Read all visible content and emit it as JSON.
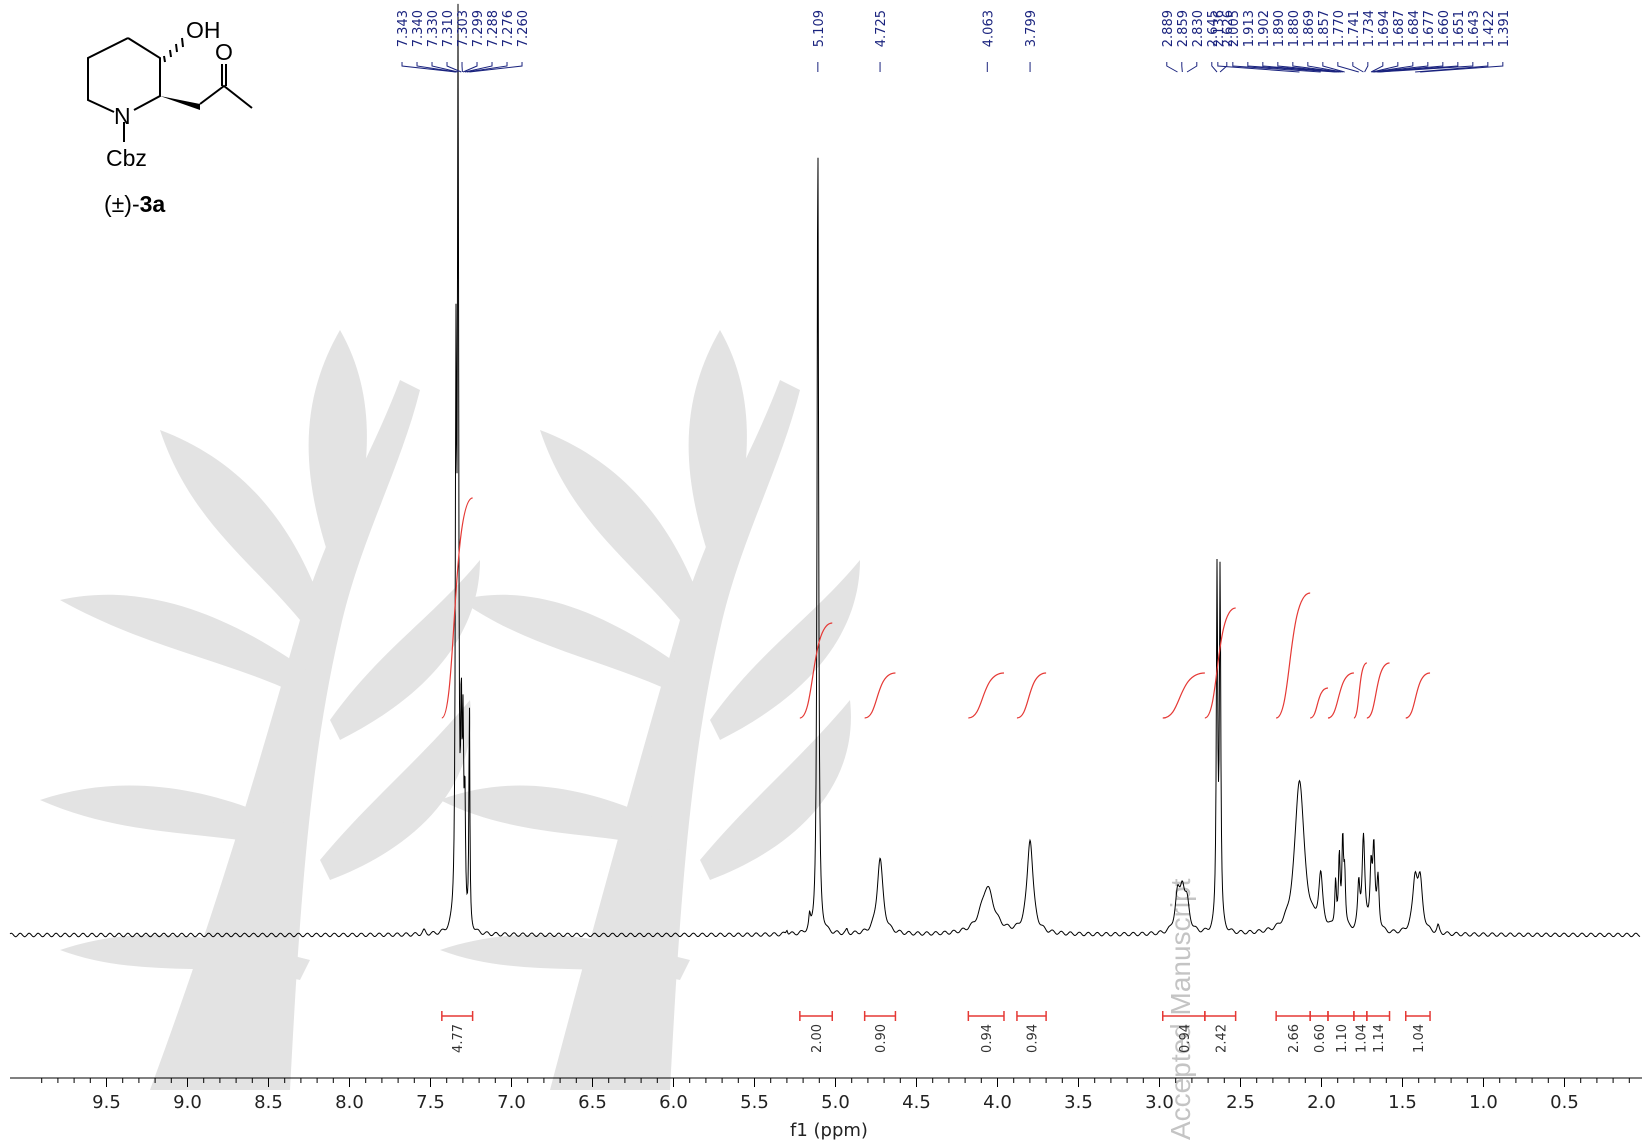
{
  "chart_data": {
    "type": "line",
    "xlabel": "f1 (ppm)",
    "xlim": [
      10.0,
      0.0
    ],
    "x_reversed": true,
    "x_ticks": [
      9.5,
      9.0,
      8.5,
      8.0,
      7.5,
      7.0,
      6.5,
      6.0,
      5.5,
      5.0,
      4.5,
      4.0,
      3.5,
      3.0,
      2.5,
      2.0,
      1.5,
      1.0,
      0.5
    ],
    "x_tick_labels": [
      "9.5",
      "9.0",
      "8.5",
      "8.0",
      "7.5",
      "7.0",
      "6.5",
      "6.0",
      "5.5",
      "5.0",
      "4.5",
      "4.0",
      "3.5",
      "3.0",
      "2.5",
      "2.0",
      "1.5",
      "1.0",
      "0.5"
    ],
    "peak_groups": [
      {
        "labels": [
          "7.343",
          "7.340",
          "7.330",
          "7.310",
          "7.303",
          "7.299",
          "7.288",
          "7.276",
          "7.260"
        ],
        "ppm": [
          7.343,
          7.34,
          7.33,
          7.31,
          7.303,
          7.299,
          7.288,
          7.276,
          7.26
        ]
      },
      {
        "labels": [
          "5.109"
        ],
        "ppm": [
          5.109
        ]
      },
      {
        "labels": [
          "4.725"
        ],
        "ppm": [
          4.725
        ]
      },
      {
        "labels": [
          "4.063"
        ],
        "ppm": [
          4.063
        ]
      },
      {
        "labels": [
          "3.799"
        ],
        "ppm": [
          3.799
        ]
      },
      {
        "labels": [
          "2.889",
          "2.859",
          "2.830",
          "2.645",
          "2.626"
        ],
        "ppm": [
          2.889,
          2.859,
          2.83,
          2.645,
          2.626
        ]
      },
      {
        "labels": [
          "2.136",
          "2.005",
          "1.913",
          "1.902",
          "1.890",
          "1.880",
          "1.869",
          "1.857",
          "1.770",
          "1.741",
          "1.734",
          "1.694",
          "1.687",
          "1.684",
          "1.677",
          "1.660",
          "1.651",
          "1.643",
          "1.422",
          "1.391"
        ],
        "ppm": [
          2.136,
          2.005,
          1.913,
          1.902,
          1.89,
          1.88,
          1.869,
          1.857,
          1.77,
          1.741,
          1.734,
          1.694,
          1.687,
          1.684,
          1.677,
          1.66,
          1.651,
          1.643,
          1.422,
          1.391
        ]
      }
    ],
    "integrals": [
      {
        "from": 7.43,
        "to": 7.24,
        "value": "4.77"
      },
      {
        "from": 5.22,
        "to": 5.02,
        "value": "2.00"
      },
      {
        "from": 4.82,
        "to": 4.63,
        "value": "0.90"
      },
      {
        "from": 4.18,
        "to": 3.96,
        "value": "0.94"
      },
      {
        "from": 3.88,
        "to": 3.7,
        "value": "0.94"
      },
      {
        "from": 2.98,
        "to": 2.72,
        "value": "0.94"
      },
      {
        "from": 2.72,
        "to": 2.53,
        "value": "2.42"
      },
      {
        "from": 2.28,
        "to": 2.07,
        "value": "2.66"
      },
      {
        "from": 2.07,
        "to": 1.96,
        "value": "0.60"
      },
      {
        "from": 1.96,
        "to": 1.8,
        "value": "1.10"
      },
      {
        "from": 1.8,
        "to": 1.72,
        "value": "1.04"
      },
      {
        "from": 1.72,
        "to": 1.58,
        "value": "1.14"
      },
      {
        "from": 1.48,
        "to": 1.33,
        "value": "1.04"
      }
    ],
    "spectrum_peaks": [
      {
        "ppm": 7.343,
        "h": 0.62,
        "w": 0.0045
      },
      {
        "ppm": 7.33,
        "h": 1.0,
        "w": 0.0045
      },
      {
        "ppm": 7.31,
        "h": 0.22,
        "w": 0.0045
      },
      {
        "ppm": 7.299,
        "h": 0.2,
        "w": 0.0045
      },
      {
        "ppm": 7.288,
        "h": 0.14,
        "w": 0.0045
      },
      {
        "ppm": 7.26,
        "h": 0.26,
        "w": 0.0035
      },
      {
        "ppm": 5.109,
        "h": 0.93,
        "w": 0.0055
      },
      {
        "ppm": 4.725,
        "h": 0.088,
        "w": 0.022
      },
      {
        "ppm": 4.063,
        "h": 0.055,
        "w": 0.05
      },
      {
        "ppm": 3.799,
        "h": 0.11,
        "w": 0.022
      },
      {
        "ppm": 2.889,
        "h": 0.04,
        "w": 0.018
      },
      {
        "ppm": 2.859,
        "h": 0.045,
        "w": 0.018
      },
      {
        "ppm": 2.83,
        "h": 0.03,
        "w": 0.018
      },
      {
        "ppm": 2.645,
        "h": 0.41,
        "w": 0.005
      },
      {
        "ppm": 2.626,
        "h": 0.41,
        "w": 0.005
      },
      {
        "ppm": 2.136,
        "h": 0.18,
        "w": 0.035
      },
      {
        "ppm": 2.005,
        "h": 0.06,
        "w": 0.015
      },
      {
        "ppm": 1.913,
        "h": 0.055,
        "w": 0.006
      },
      {
        "ppm": 1.89,
        "h": 0.08,
        "w": 0.006
      },
      {
        "ppm": 1.869,
        "h": 0.1,
        "w": 0.006
      },
      {
        "ppm": 1.857,
        "h": 0.06,
        "w": 0.006
      },
      {
        "ppm": 1.77,
        "h": 0.05,
        "w": 0.008
      },
      {
        "ppm": 1.741,
        "h": 0.11,
        "w": 0.01
      },
      {
        "ppm": 1.694,
        "h": 0.07,
        "w": 0.008
      },
      {
        "ppm": 1.677,
        "h": 0.09,
        "w": 0.008
      },
      {
        "ppm": 1.651,
        "h": 0.06,
        "w": 0.008
      },
      {
        "ppm": 1.422,
        "h": 0.06,
        "w": 0.018
      },
      {
        "ppm": 1.391,
        "h": 0.055,
        "w": 0.018
      },
      {
        "ppm": 1.28,
        "h": 0.008,
        "w": 0.008
      },
      {
        "ppm": 7.54,
        "h": 0.004,
        "w": 0.01
      },
      {
        "ppm": 5.3,
        "h": 0.006,
        "w": 0.006
      },
      {
        "ppm": 5.16,
        "h": 0.015,
        "w": 0.006
      },
      {
        "ppm": 4.93,
        "h": 0.004,
        "w": 0.006
      }
    ]
  },
  "structure": {
    "oh_label": "OH",
    "o_label": "O",
    "n_label": "N",
    "cbz_label": "Cbz",
    "compound_prefix": "(±)-",
    "compound_id": "3a"
  },
  "watermark": {
    "text": "Accepted Manuscript"
  },
  "colors": {
    "spectrum": "#000000",
    "peak_labels": "#1a237e",
    "integral": "#e53935",
    "logo": "#e0e0e0"
  }
}
